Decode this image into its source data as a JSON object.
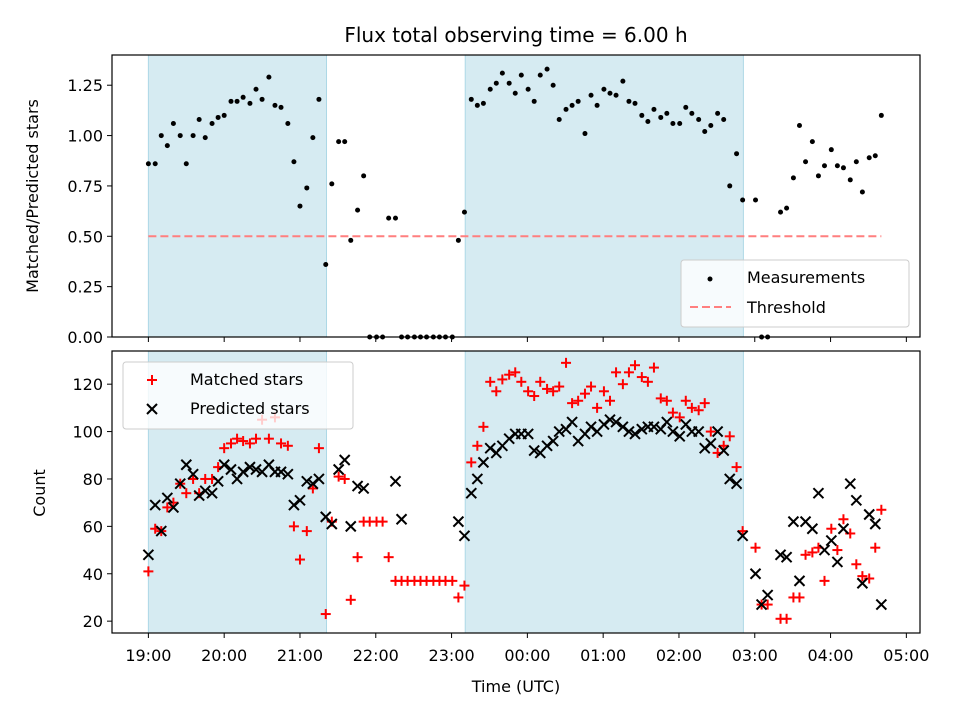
{
  "chart_data": [
    {
      "type": "scatter",
      "title": "Flux total observing time = 6.00 h",
      "xlabel": "",
      "ylabel": "Matched/Predicted stars",
      "xlim_hours_since_1900": [
        -0.48,
        10.18
      ],
      "ylim": [
        0,
        1.4
      ],
      "yticks": [
        0.0,
        0.25,
        0.5,
        0.75,
        1.0,
        1.25
      ],
      "ytick_labels": [
        "0.00",
        "0.25",
        "0.50",
        "0.75",
        "1.00",
        "1.25"
      ],
      "grid": false,
      "legend": {
        "placement": "lower-right",
        "entries": [
          "Measurements",
          "Threshold"
        ]
      },
      "shaded_spans_hours": [
        [
          0.0,
          2.35
        ],
        [
          4.18,
          7.85
        ]
      ],
      "shade_color": "#add8e6",
      "threshold": {
        "name": "Threshold",
        "value": 0.5,
        "x_range_hours": [
          0.0,
          9.67
        ],
        "color": "#ff7f7f",
        "style": "dashed"
      },
      "series": [
        {
          "name": "Measurements",
          "marker": "dot",
          "color": "#000000",
          "x_hours": [
            0.0,
            0.09,
            0.17,
            0.25,
            0.33,
            0.42,
            0.5,
            0.59,
            0.67,
            0.75,
            0.84,
            0.92,
            1.0,
            1.09,
            1.17,
            1.25,
            1.34,
            1.42,
            1.5,
            1.59,
            1.67,
            1.75,
            1.84,
            1.92,
            2.0,
            2.09,
            2.17,
            2.25,
            2.34,
            2.42,
            2.51,
            2.59,
            2.67,
            2.76,
            2.84,
            2.92,
            3.01,
            3.09,
            3.17,
            3.26,
            3.34,
            3.42,
            3.51,
            3.59,
            3.67,
            3.76,
            3.84,
            3.92,
            4.01,
            4.09,
            4.17,
            4.26,
            4.34,
            4.42,
            4.51,
            4.59,
            4.67,
            4.76,
            4.84,
            4.92,
            5.01,
            5.09,
            5.17,
            5.26,
            5.34,
            5.42,
            5.51,
            5.59,
            5.67,
            5.76,
            5.84,
            5.92,
            6.01,
            6.09,
            6.17,
            6.26,
            6.34,
            6.42,
            6.51,
            6.59,
            6.67,
            6.76,
            6.84,
            6.92,
            7.01,
            7.09,
            7.17,
            7.26,
            7.34,
            7.42,
            7.51,
            7.59,
            7.67,
            7.76,
            7.84,
            8.01,
            8.09,
            8.17,
            8.34,
            8.42,
            8.51,
            8.59,
            8.67,
            8.76,
            8.84,
            8.92,
            9.01,
            9.09,
            9.17,
            9.26,
            9.34,
            9.42,
            9.51,
            9.59,
            9.67
          ],
          "y": [
            0.86,
            0.86,
            1.0,
            0.95,
            1.06,
            1.0,
            0.86,
            1.0,
            1.08,
            0.99,
            1.06,
            1.09,
            1.1,
            1.17,
            1.17,
            1.19,
            1.16,
            1.23,
            1.18,
            1.29,
            1.15,
            1.14,
            1.06,
            0.87,
            0.65,
            0.74,
            0.99,
            1.18,
            0.36,
            0.76,
            0.97,
            0.97,
            0.48,
            0.63,
            0.8,
            0.0,
            0.0,
            0.0,
            0.59,
            0.59,
            0.0,
            0.0,
            0.0,
            0.0,
            0.0,
            0.0,
            0.0,
            0.0,
            0.0,
            0.48,
            0.62,
            1.18,
            1.15,
            1.16,
            1.23,
            1.26,
            1.31,
            1.26,
            1.21,
            1.3,
            1.23,
            1.17,
            1.3,
            1.33,
            1.25,
            1.08,
            1.13,
            1.15,
            1.17,
            1.01,
            1.2,
            1.15,
            1.23,
            1.21,
            1.2,
            1.27,
            1.17,
            1.16,
            1.1,
            1.07,
            1.13,
            1.09,
            1.11,
            1.06,
            1.06,
            1.14,
            1.11,
            1.08,
            1.02,
            1.05,
            1.11,
            1.08,
            0.75,
            0.91,
            0.68,
            0.68,
            0.0,
            0.0,
            0.62,
            0.64,
            0.79,
            1.05,
            0.87,
            0.97,
            0.8,
            0.85,
            0.93,
            0.85,
            0.84,
            0.78,
            0.87,
            0.72,
            0.89,
            0.9,
            1.1,
            0.85
          ]
        }
      ]
    },
    {
      "type": "scatter",
      "title": "",
      "xlabel": "Time (UTC)",
      "ylabel": "Count",
      "xlim_hours_since_1900": [
        -0.48,
        10.18
      ],
      "ylim": [
        15,
        134
      ],
      "yticks": [
        20,
        40,
        60,
        80,
        100,
        120
      ],
      "ytick_labels": [
        "20",
        "40",
        "60",
        "80",
        "100",
        "120"
      ],
      "xticks_hours": [
        0,
        1,
        2,
        3,
        4,
        5,
        6,
        7,
        8,
        9,
        10
      ],
      "xtick_labels": [
        "19:00",
        "20:00",
        "21:00",
        "22:00",
        "23:00",
        "00:00",
        "01:00",
        "02:00",
        "03:00",
        "04:00",
        "05:00"
      ],
      "grid": false,
      "legend": {
        "placement": "upper-left",
        "entries": [
          "Matched stars",
          "Predicted stars"
        ]
      },
      "shaded_spans_hours": [
        [
          0.0,
          2.35
        ],
        [
          4.18,
          7.85
        ]
      ],
      "shade_color": "#add8e6",
      "series": [
        {
          "name": "Matched stars",
          "marker": "plus",
          "color": "#ff0000",
          "x_hours": [
            0.0,
            0.09,
            0.17,
            0.25,
            0.33,
            0.42,
            0.5,
            0.59,
            0.67,
            0.75,
            0.84,
            0.92,
            1.0,
            1.09,
            1.17,
            1.25,
            1.34,
            1.42,
            1.5,
            1.59,
            1.67,
            1.75,
            1.84,
            1.92,
            2.0,
            2.09,
            2.17,
            2.25,
            2.34,
            2.42,
            2.51,
            2.59,
            2.67,
            2.76,
            2.84,
            2.92,
            3.01,
            3.09,
            3.17,
            3.26,
            3.34,
            3.42,
            3.51,
            3.59,
            3.67,
            3.76,
            3.84,
            3.92,
            4.01,
            4.09,
            4.17,
            4.26,
            4.34,
            4.42,
            4.51,
            4.59,
            4.67,
            4.76,
            4.84,
            4.92,
            5.01,
            5.09,
            5.17,
            5.26,
            5.34,
            5.42,
            5.51,
            5.59,
            5.67,
            5.76,
            5.84,
            5.92,
            6.01,
            6.09,
            6.17,
            6.26,
            6.34,
            6.42,
            6.51,
            6.59,
            6.67,
            6.76,
            6.84,
            6.92,
            7.01,
            7.09,
            7.17,
            7.26,
            7.34,
            7.42,
            7.51,
            7.59,
            7.67,
            7.76,
            7.84,
            8.01,
            8.09,
            8.17,
            8.34,
            8.42,
            8.51,
            8.59,
            8.67,
            8.76,
            8.84,
            8.92,
            9.01,
            9.09,
            9.17,
            9.26,
            9.34,
            9.42,
            9.51,
            9.59,
            9.67
          ],
          "y": [
            41,
            59,
            58,
            68,
            70,
            78,
            74,
            80,
            74,
            80,
            80,
            85,
            93,
            95,
            97,
            96,
            95,
            97,
            105,
            97,
            106,
            95,
            94,
            60,
            46,
            58,
            76,
            93,
            23,
            62,
            81,
            80,
            29,
            47,
            62,
            62,
            62,
            62,
            47,
            37,
            37,
            37,
            37,
            37,
            37,
            37,
            37,
            37,
            37,
            30,
            35,
            87,
            94,
            102,
            121,
            117,
            122,
            124,
            125,
            121,
            117,
            115,
            121,
            118,
            117,
            119,
            129,
            112,
            113,
            116,
            119,
            110,
            117,
            113,
            125,
            120,
            125,
            128,
            123,
            121,
            127,
            114,
            113,
            108,
            106,
            113,
            110,
            109,
            112,
            100,
            91,
            94,
            98,
            85,
            58,
            51,
            27,
            27,
            21,
            21,
            30,
            30,
            48,
            49,
            51,
            37,
            59,
            50,
            63,
            57,
            44,
            39,
            38,
            51,
            67,
            32,
            58,
            63,
            23
          ],
          "color_note": "red plus markers"
        },
        {
          "name": "Predicted stars",
          "marker": "x",
          "color": "#000000",
          "x_hours": [
            0.0,
            0.09,
            0.17,
            0.25,
            0.33,
            0.42,
            0.5,
            0.59,
            0.67,
            0.75,
            0.84,
            0.92,
            1.0,
            1.09,
            1.17,
            1.25,
            1.34,
            1.42,
            1.5,
            1.59,
            1.67,
            1.75,
            1.84,
            1.92,
            2.0,
            2.09,
            2.17,
            2.25,
            2.34,
            2.42,
            2.51,
            2.59,
            2.67,
            2.76,
            2.84,
            3.26,
            3.34,
            4.09,
            4.17,
            4.26,
            4.34,
            4.42,
            4.51,
            4.59,
            4.67,
            4.76,
            4.84,
            4.92,
            5.01,
            5.09,
            5.17,
            5.26,
            5.34,
            5.42,
            5.51,
            5.59,
            5.67,
            5.76,
            5.84,
            5.92,
            6.01,
            6.09,
            6.17,
            6.26,
            6.34,
            6.42,
            6.51,
            6.59,
            6.67,
            6.76,
            6.84,
            6.92,
            7.01,
            7.09,
            7.17,
            7.26,
            7.34,
            7.42,
            7.51,
            7.59,
            7.67,
            7.76,
            7.84,
            8.01,
            8.09,
            8.17,
            8.34,
            8.42,
            8.51,
            8.59,
            8.67,
            8.76,
            8.84,
            8.92,
            9.01,
            9.09,
            9.17,
            9.26,
            9.34,
            9.42,
            9.51,
            9.59,
            9.67
          ],
          "y": [
            48,
            69,
            58,
            72,
            68,
            78,
            86,
            82,
            73,
            75,
            74,
            79,
            86,
            84,
            80,
            83,
            85,
            84,
            83,
            86,
            83,
            83,
            82,
            69,
            71,
            79,
            78,
            80,
            64,
            61,
            84,
            88,
            60,
            77,
            76,
            79,
            63,
            62,
            56,
            74,
            80,
            87,
            93,
            91,
            94,
            97,
            99,
            99,
            99,
            92,
            91,
            94,
            96,
            100,
            101,
            104,
            96,
            99,
            102,
            100,
            103,
            105,
            104,
            102,
            100,
            99,
            101,
            102,
            102,
            101,
            104,
            100,
            98,
            103,
            100,
            100,
            93,
            95,
            100,
            92,
            80,
            78,
            56,
            40,
            27,
            31,
            48,
            47,
            62,
            37,
            62,
            59,
            74,
            50,
            54,
            45,
            59,
            78,
            71,
            36,
            65,
            61,
            27
          ]
        }
      ]
    }
  ]
}
